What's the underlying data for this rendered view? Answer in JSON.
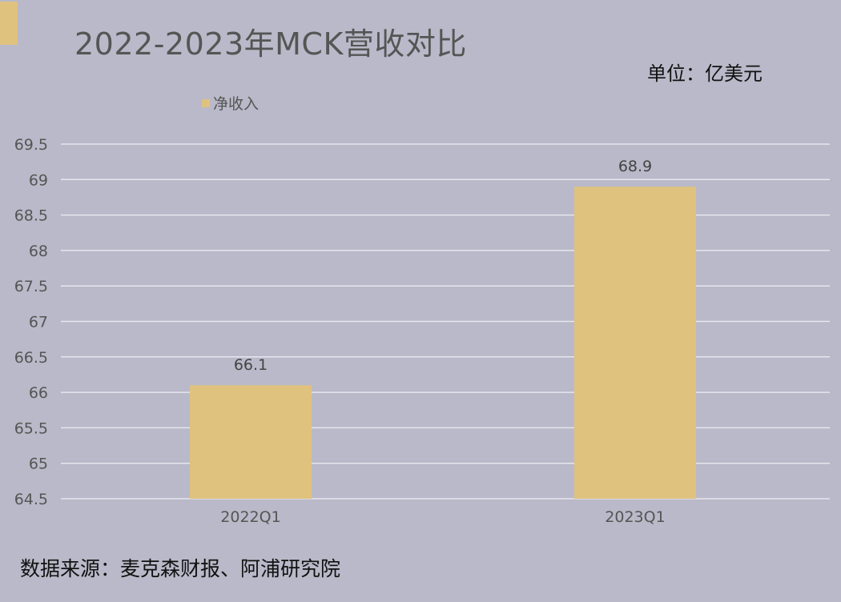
{
  "title": "2022-2023年MCK营收对比",
  "unit_label": "单位：亿美元",
  "source": "数据来源：麦克森财报、阿浦研究院",
  "colors": {
    "background": "#b9b9c9",
    "bar": "#e0c27f",
    "accent": "#e0c27f",
    "grid": "#e6e6ee",
    "text": "#555555"
  },
  "chart_data": {
    "type": "bar",
    "title": "2022-2023年MCK营收对比",
    "categories": [
      "2022Q1",
      "2023Q1"
    ],
    "series": [
      {
        "name": "净收入",
        "values": [
          66.1,
          68.9
        ],
        "color": "#e0c27f"
      }
    ],
    "data_labels": [
      "66.1",
      "68.9"
    ],
    "ylim": [
      64.5,
      69.5
    ],
    "yticks": [
      64.5,
      65,
      65.5,
      66,
      66.5,
      67,
      67.5,
      68,
      68.5,
      69,
      69.5
    ],
    "ytick_labels": [
      "64.5",
      "65",
      "65.5",
      "66",
      "66.5",
      "67",
      "67.5",
      "68",
      "68.5",
      "69",
      "69.5"
    ],
    "xlabel": "",
    "ylabel": "",
    "grid": true,
    "legend": "top-left"
  }
}
